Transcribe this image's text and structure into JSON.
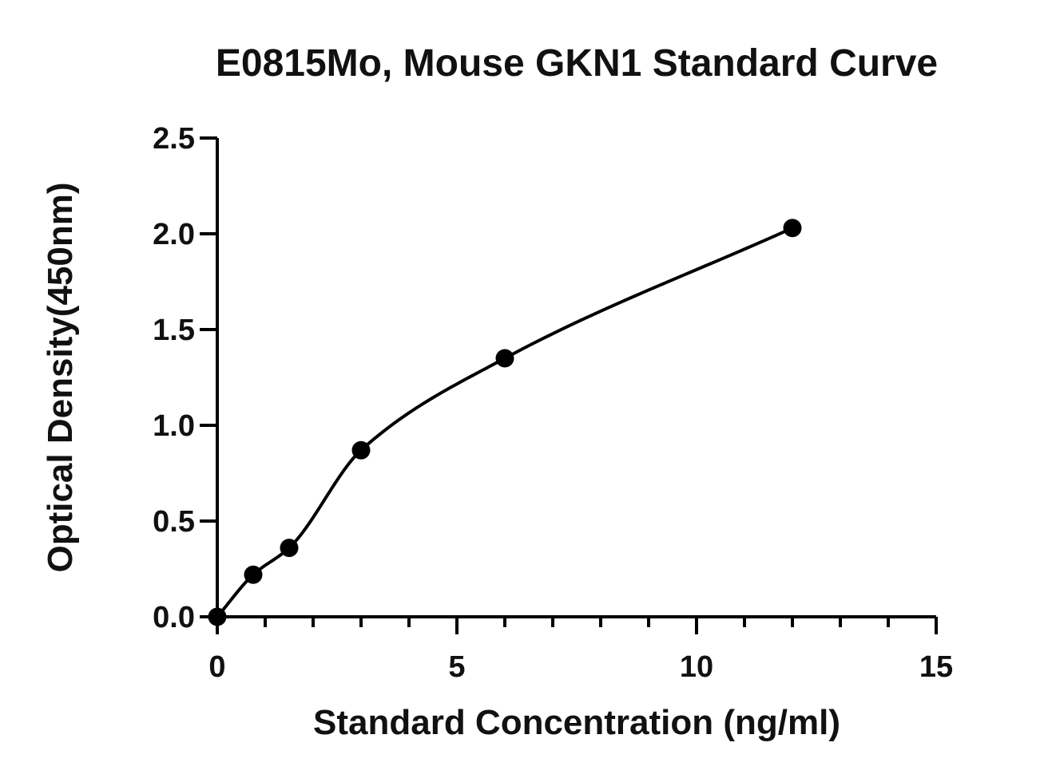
{
  "chart_data": {
    "type": "scatter",
    "title": "E0815Mo, Mouse GKN1 Standard Curve",
    "xlabel": "Standard Concentration (ng/ml)",
    "ylabel": "Optical Density(450nm)",
    "xlim": [
      0,
      15
    ],
    "ylim": [
      0,
      2.5
    ],
    "x_major_ticks": [
      0,
      5,
      10,
      15
    ],
    "x_tick_labels": [
      "0",
      "5",
      "10",
      "15"
    ],
    "x_minor_step": 1,
    "y_major_ticks": [
      0,
      0.5,
      1.0,
      1.5,
      2.0,
      2.5
    ],
    "y_tick_labels": [
      "0.0",
      "0.5",
      "1.0",
      "1.5",
      "2.0",
      "2.5"
    ],
    "grid": false,
    "series": [
      {
        "x": [
          0,
          0.75,
          1.5,
          3,
          6,
          12
        ],
        "y": [
          0.0,
          0.22,
          0.36,
          0.87,
          1.35,
          2.03
        ],
        "marker": "filled-circle",
        "fit": "smooth-curve",
        "color": "#000000"
      }
    ]
  }
}
